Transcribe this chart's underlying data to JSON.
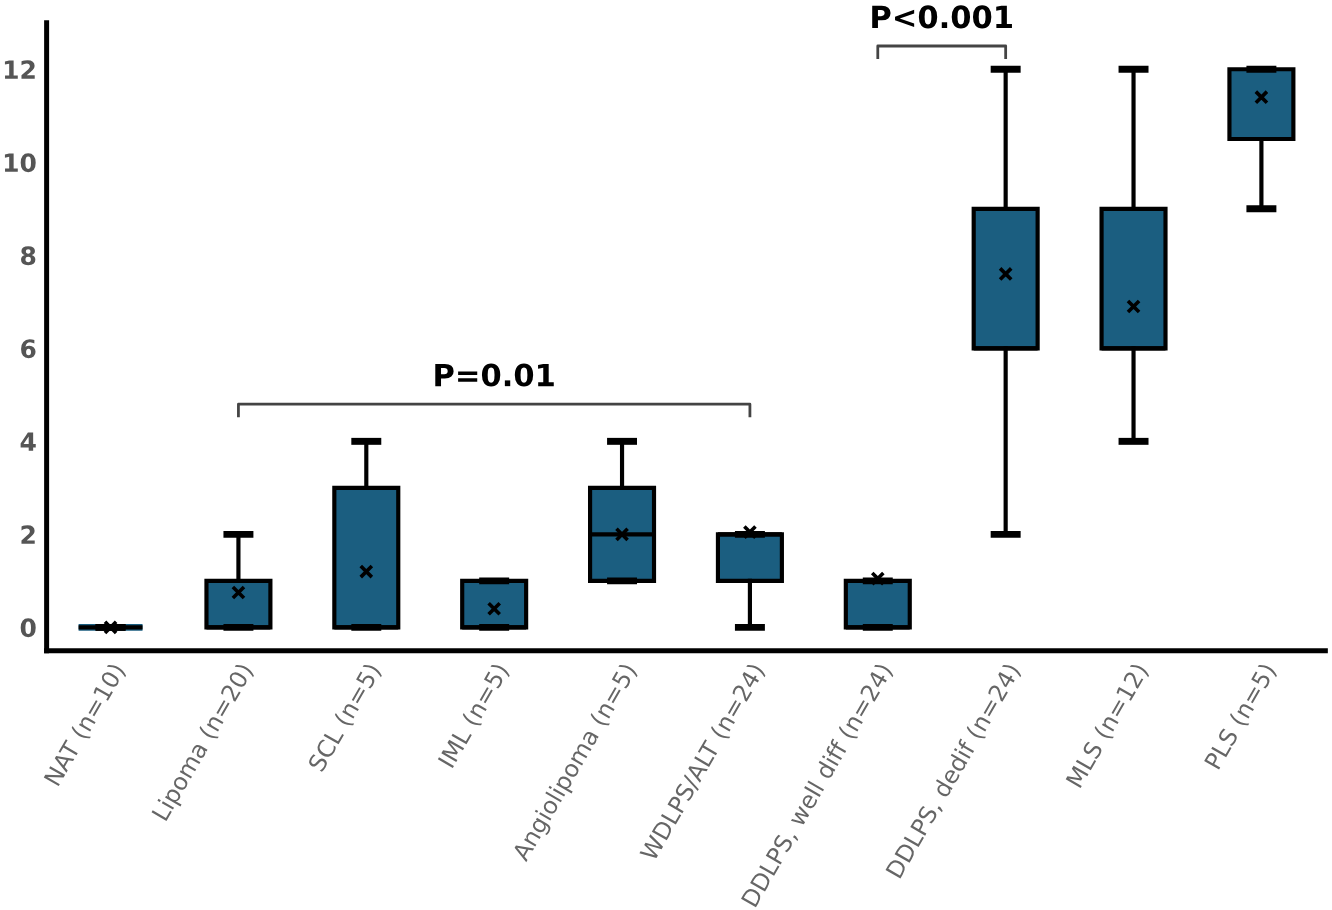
{
  "chart_data": {
    "type": "box",
    "categories": [
      "NAT (n=10)",
      "Lipoma (n=20)",
      "SCL (n=5)",
      "IML (n=5)",
      "Angiolipoma (n=5)",
      "WDLPS/ALT (n=24)",
      "DDLPS, well diff (n=24)",
      "DDLPS, dedif (n=24)",
      "MLS (n=12)",
      "PLS (n=5)"
    ],
    "color": "#1b5e80",
    "boxes": [
      {
        "low": 0,
        "q1": 0,
        "median": 0,
        "q3": 0,
        "high": 0,
        "mean": 0
      },
      {
        "low": 0,
        "q1": 0,
        "median": 0,
        "q3": 1,
        "high": 2,
        "mean": 0.75
      },
      {
        "low": 0,
        "q1": 0,
        "median": 0,
        "q3": 3,
        "high": 4,
        "mean": 1.2
      },
      {
        "low": 0,
        "q1": 0,
        "median": 0,
        "q3": 1,
        "high": 1,
        "mean": 0.4
      },
      {
        "low": 1,
        "q1": 1,
        "median": 2,
        "q3": 3,
        "high": 4,
        "mean": 2
      },
      {
        "low": 0,
        "q1": 1,
        "median": 2,
        "q3": 2,
        "high": 2,
        "mean": 2.05
      },
      {
        "low": 0,
        "q1": 0,
        "median": 0,
        "q3": 1,
        "high": 1,
        "mean": 1.05
      },
      {
        "low": 2,
        "q1": 6,
        "median": 6,
        "q3": 9,
        "high": 12,
        "mean": 7.6
      },
      {
        "low": 4,
        "q1": 6,
        "median": 6,
        "q3": 9,
        "high": 12,
        "mean": 6.9
      },
      {
        "low": 9,
        "q1": 10.5,
        "median": 10.5,
        "q3": 12,
        "high": 12,
        "mean": 11.4
      }
    ],
    "ylim": [
      -0.5,
      13
    ],
    "yticks": [
      0,
      2,
      4,
      6,
      8,
      10,
      12
    ],
    "grid": false,
    "annotations": [
      "P=0.01",
      "P<0.001"
    ]
  }
}
